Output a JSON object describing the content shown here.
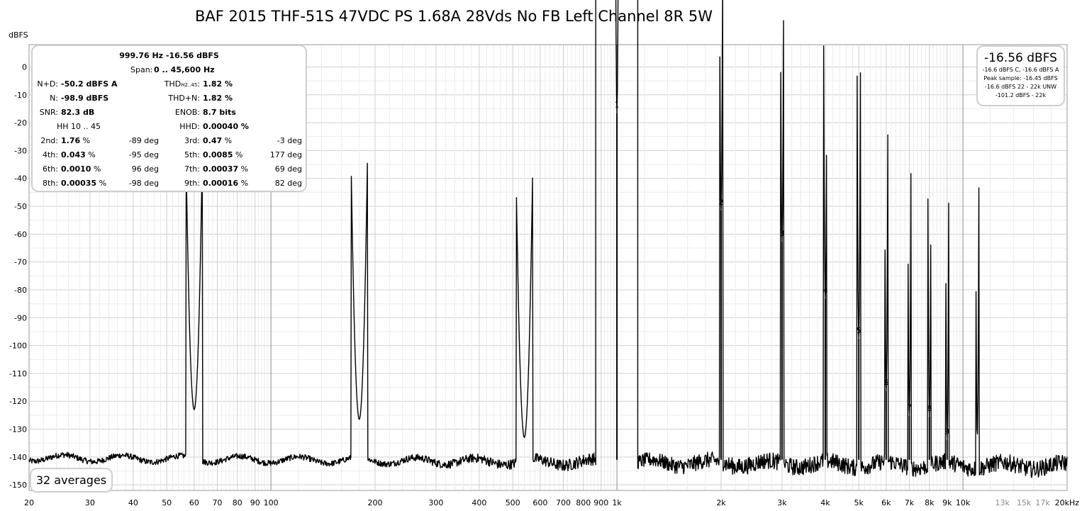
{
  "chart_data": {
    "type": "line",
    "title": "BAF 2015 THF-51S 47VDC PS 1.68A 28Vds No FB Left Channel 8R 5W",
    "ylabel": "dBFS",
    "xlabel_unit": "kHz",
    "x_scale": "log",
    "xlim": [
      20,
      20000
    ],
    "ylim": [
      -152,
      8
    ],
    "grid": true,
    "y_ticks": [
      0,
      -10,
      -20,
      -30,
      -40,
      -50,
      -60,
      -70,
      -80,
      -90,
      -100,
      -110,
      -120,
      -130,
      -140,
      -150
    ],
    "x_ticks": [
      {
        "v": 20,
        "t": "20"
      },
      {
        "v": 30,
        "t": "30"
      },
      {
        "v": 40,
        "t": "40"
      },
      {
        "v": 50,
        "t": "50"
      },
      {
        "v": 60,
        "t": "60"
      },
      {
        "v": 70,
        "t": "70"
      },
      {
        "v": 80,
        "t": "80"
      },
      {
        "v": 90,
        "t": "90"
      },
      {
        "v": 100,
        "t": "100"
      },
      {
        "v": 200,
        "t": "200"
      },
      {
        "v": 300,
        "t": "300"
      },
      {
        "v": 400,
        "t": "400"
      },
      {
        "v": 500,
        "t": "500"
      },
      {
        "v": 600,
        "t": "600"
      },
      {
        "v": 700,
        "t": "700"
      },
      {
        "v": 800,
        "t": "800"
      },
      {
        "v": 900,
        "t": "900"
      },
      {
        "v": 1000,
        "t": "1k"
      },
      {
        "v": 2000,
        "t": "2k"
      },
      {
        "v": 3000,
        "t": "3k"
      },
      {
        "v": 4000,
        "t": "4k"
      },
      {
        "v": 5000,
        "t": "5k"
      },
      {
        "v": 6000,
        "t": "6k"
      },
      {
        "v": 7000,
        "t": "7k"
      },
      {
        "v": 8000,
        "t": "8k"
      },
      {
        "v": 9000,
        "t": "9k"
      },
      {
        "v": 10000,
        "t": "10k"
      },
      {
        "v": 13000,
        "t": "13k",
        "light": true
      },
      {
        "v": 15000,
        "t": "15k",
        "light": true
      },
      {
        "v": 17000,
        "t": "17k",
        "light": true
      },
      {
        "v": 20000,
        "t": "20kHz"
      }
    ],
    "noise_floor": {
      "base_dbfs": -142,
      "tilt_per_decade": -1.0,
      "jitter_db": 3
    },
    "peaks": [
      {
        "f": 60,
        "dbfs": -123
      },
      {
        "f": 180,
        "dbfs": -126.5
      },
      {
        "f": 540,
        "dbfs": -133
      },
      {
        "f": 1000,
        "dbfs": -16.6
      },
      {
        "f": 11000,
        "dbfs": -133
      }
    ],
    "harmonics": [
      {
        "n": "1",
        "f": 1000,
        "dbfs": -16.6
      },
      {
        "n": "2",
        "f": 2000,
        "dbfs": -51.5
      },
      {
        "n": "3",
        "f": 3000,
        "dbfs": -62.7
      },
      {
        "n": "4",
        "f": 4000,
        "dbfs": -83.2
      },
      {
        "n": "5",
        "f": 5000,
        "dbfs": -97.6
      },
      {
        "n": "6",
        "f": 6000,
        "dbfs": -116.3
      },
      {
        "n": "7",
        "f": 7000,
        "dbfs": -125.2
      },
      {
        "n": "8",
        "f": 8000,
        "dbfs": -125.6
      },
      {
        "n": "9",
        "f": 9000,
        "dbfs": -133.8
      }
    ]
  },
  "stats_panel": {
    "fundamental": "999.76 Hz  -16.56 dBFS",
    "span_label": "Span:",
    "span_value": "0 .. 45,600 Hz",
    "nd_label": "N+D:",
    "nd_value": "-50.2 dBFS A",
    "thd_label_main": "THD",
    "thd_label_sub": "H2..45",
    "thd_label_colon": ":",
    "thd_value": "1.82 %",
    "n_label": "N:",
    "n_value": "-98.9 dBFS",
    "thdn_label": "THD+N:",
    "thdn_value": "1.82 %",
    "snr_label": "SNR:",
    "snr_value": "82.3 dB",
    "enob_label": "ENOB:",
    "enob_value": "8.7 bits",
    "hh_label": "HH 10 .. 45",
    "hhd_label": "HHD:",
    "hhd_value": "0.00040 %",
    "harmonic_rows": [
      {
        "l1": "2nd:",
        "v1": "1.76",
        "p1": "-89 deg",
        "l2": "3rd:",
        "v2": "0.47",
        "p2": "-3 deg"
      },
      {
        "l1": "4th:",
        "v1": "0.043",
        "p1": "-95 deg",
        "l2": "5th:",
        "v2": "0.0085",
        "p2": "177 deg"
      },
      {
        "l1": "6th:",
        "v1": "0.0010",
        "p1": "96 deg",
        "l2": "7th:",
        "v2": "0.00037",
        "p2": "69 deg"
      },
      {
        "l1": "8th:",
        "v1": "0.00035",
        "p1": "-98 deg",
        "l2": "9th:",
        "v2": "0.00016",
        "p2": "82 deg"
      }
    ],
    "pct": "%"
  },
  "level_panel": {
    "main": "-16.56 dBFS",
    "line1": "-16.6 dBFS C, -16.6 dBFS A",
    "line2": "Peak sample: -16.45 dBFS",
    "line3": "-16.6 dBFS 22 - 22k UNW",
    "line4": "-101.2 dBFS - 22k"
  },
  "averages_label": "32 averages"
}
